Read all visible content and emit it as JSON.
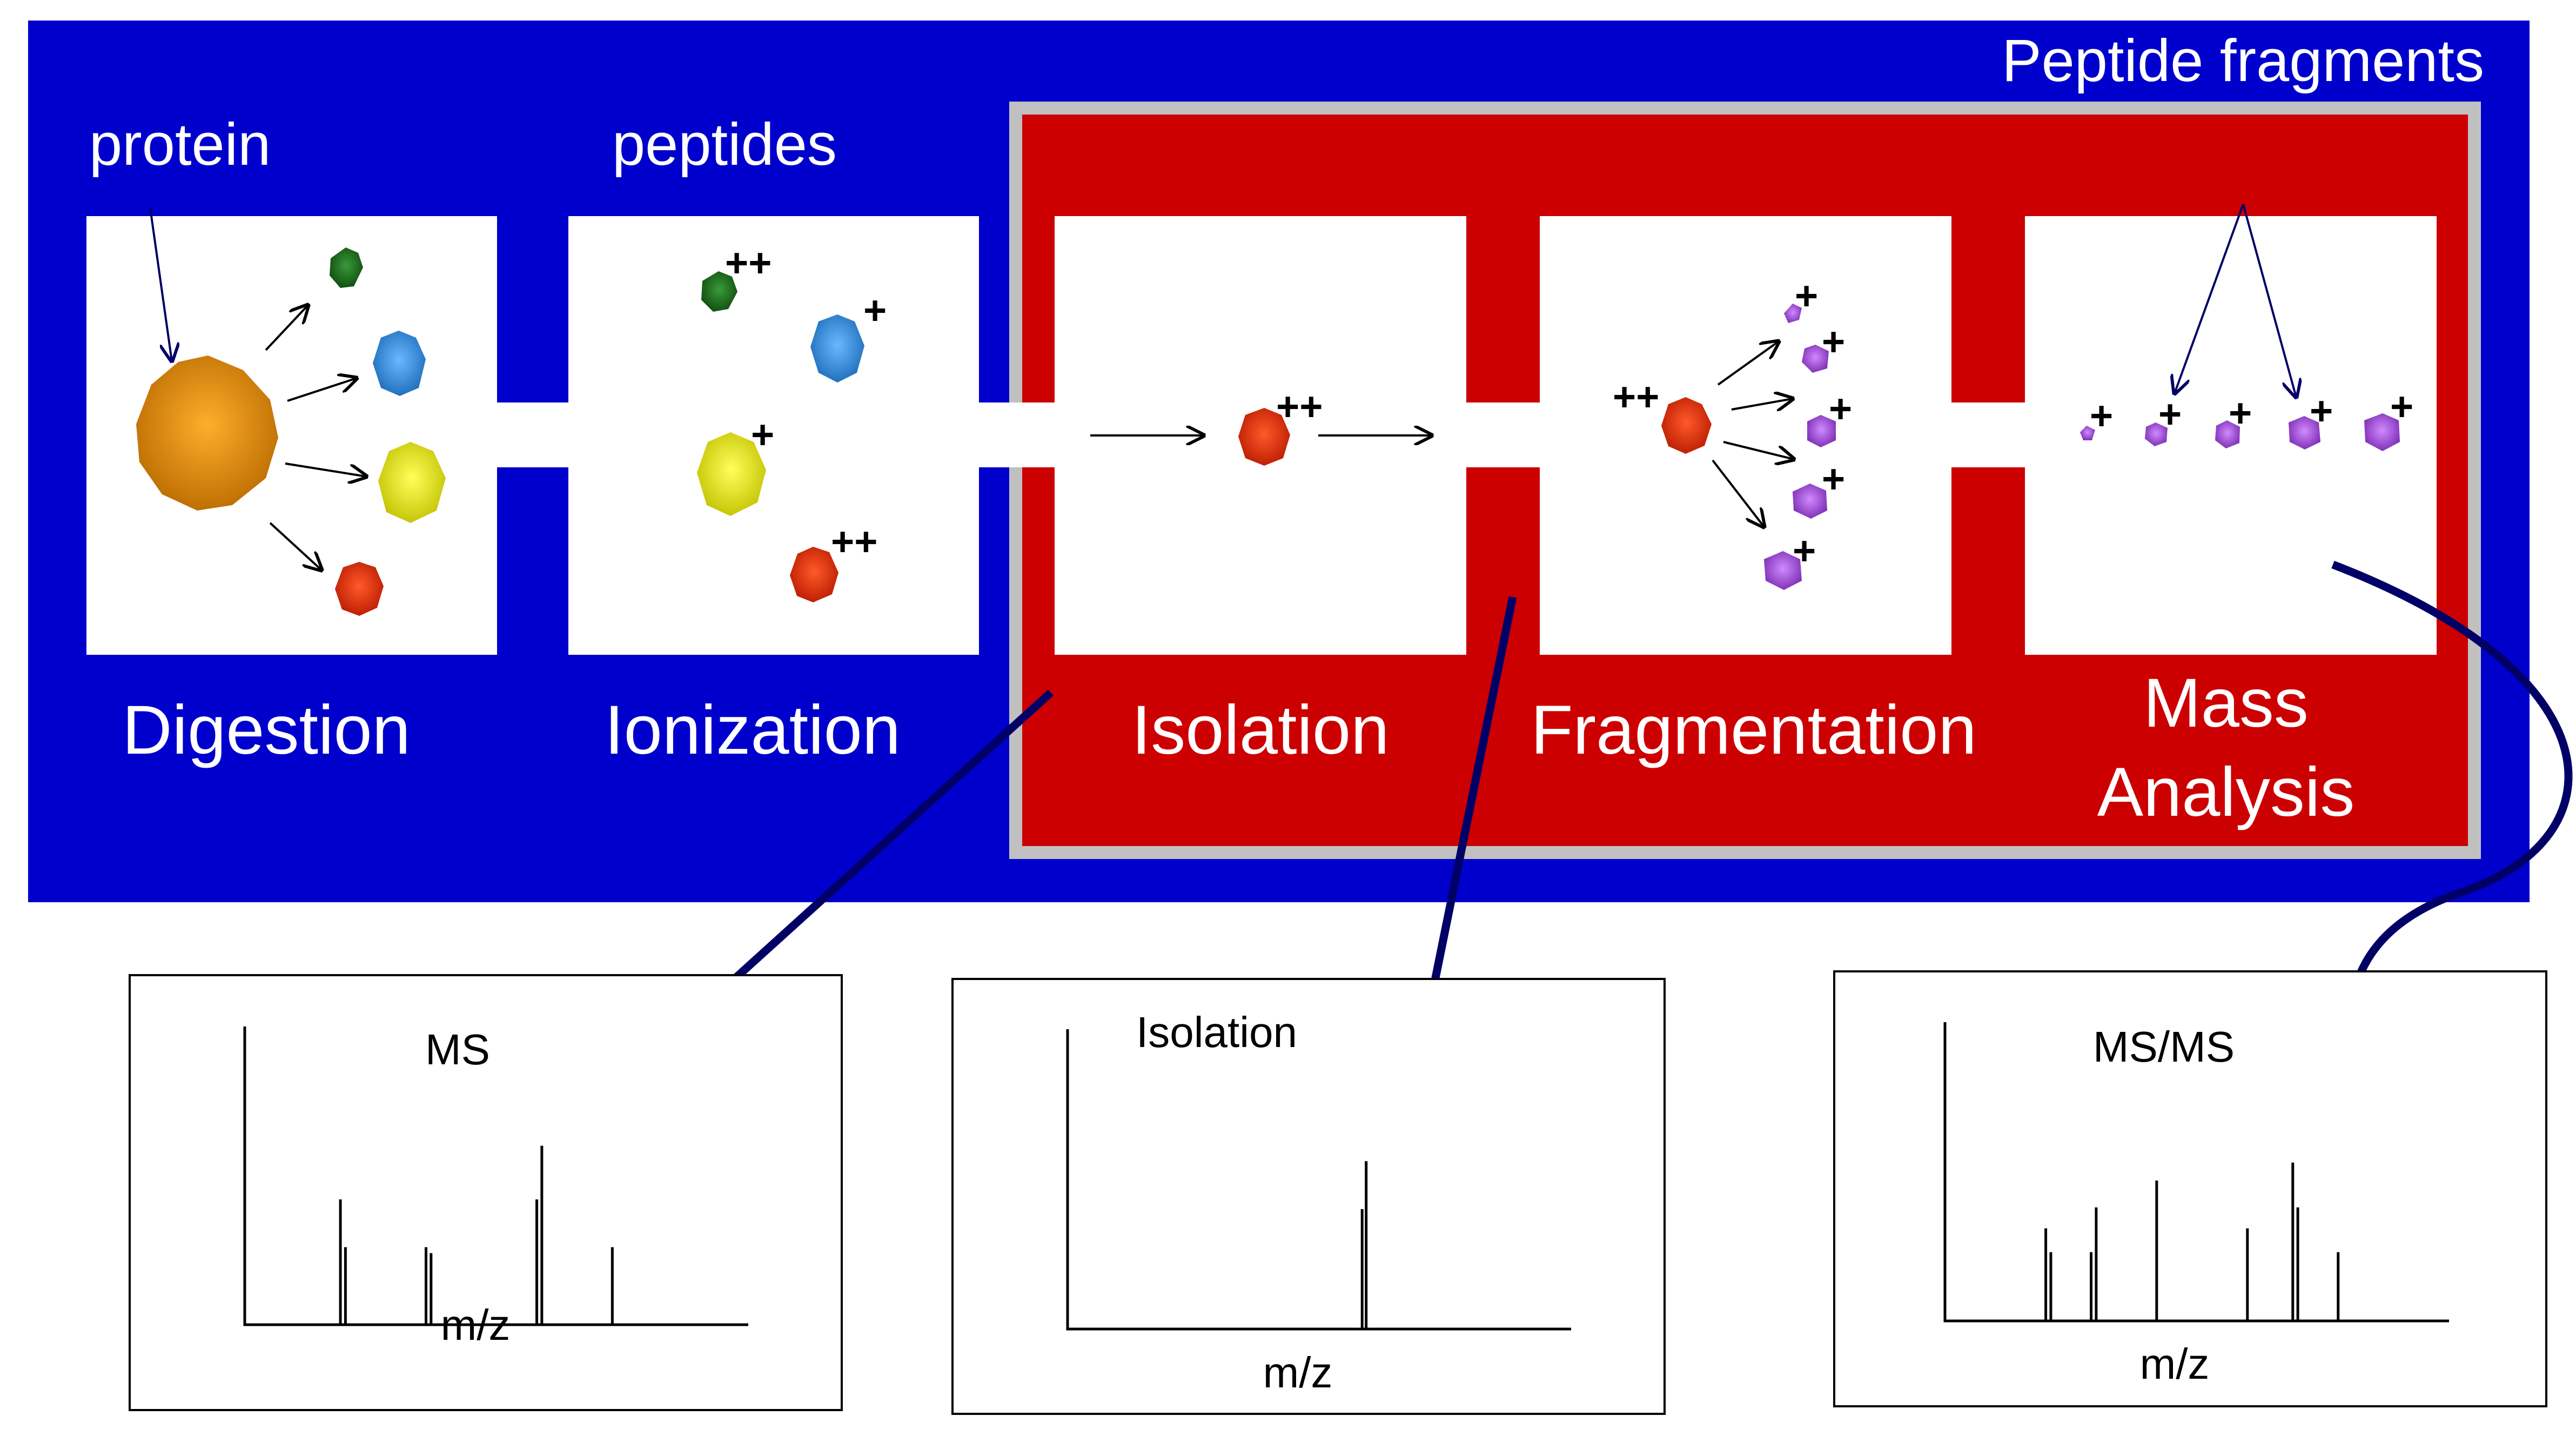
{
  "colors": {
    "background_blue": "#0000cc",
    "highlight_red": "#cc0000",
    "highlight_border": "#c0c0c0",
    "arrow_navy": "#000066",
    "protein": "#e08a00",
    "peptide_green": "#1a6a1a",
    "peptide_blue": "#2a8ae0",
    "peptide_yellow": "#e6e600",
    "peptide_red": "#e02a00",
    "fragment_purple": "#a04ad8"
  },
  "labels": {
    "peptide_fragments": "Peptide fragments",
    "protein": "protein",
    "peptides": "peptides"
  },
  "stages": [
    {
      "label": "Digestion"
    },
    {
      "label": "Ionization"
    },
    {
      "label": "Isolation"
    },
    {
      "label": "Fragmentation"
    },
    {
      "label_line1": "Mass",
      "label_line2": "Analysis"
    }
  ],
  "charges": {
    "single": "+",
    "double": "++"
  },
  "spectra": [
    {
      "title": "MS",
      "xlabel": "m/z"
    },
    {
      "title": "Isolation",
      "xlabel": "m/z"
    },
    {
      "title": "MS/MS",
      "xlabel": "m/z"
    }
  ],
  "chart_data": [
    {
      "type": "bar",
      "title": "MS",
      "xlabel": "m/z",
      "ylabel": "",
      "peaks": [
        {
          "x": 0.19,
          "y": 0.42
        },
        {
          "x": 0.2,
          "y": 0.26
        },
        {
          "x": 0.36,
          "y": 0.26
        },
        {
          "x": 0.37,
          "y": 0.24
        },
        {
          "x": 0.58,
          "y": 0.42
        },
        {
          "x": 0.59,
          "y": 0.6
        },
        {
          "x": 0.73,
          "y": 0.26
        }
      ]
    },
    {
      "type": "bar",
      "title": "Isolation",
      "xlabel": "m/z",
      "ylabel": "",
      "peaks": [
        {
          "x": 0.585,
          "y": 0.4
        },
        {
          "x": 0.593,
          "y": 0.56
        }
      ]
    },
    {
      "type": "bar",
      "title": "MS/MS",
      "xlabel": "m/z",
      "ylabel": "",
      "peaks": [
        {
          "x": 0.2,
          "y": 0.31
        },
        {
          "x": 0.21,
          "y": 0.23
        },
        {
          "x": 0.29,
          "y": 0.23
        },
        {
          "x": 0.3,
          "y": 0.38
        },
        {
          "x": 0.42,
          "y": 0.47
        },
        {
          "x": 0.6,
          "y": 0.31
        },
        {
          "x": 0.69,
          "y": 0.53
        },
        {
          "x": 0.7,
          "y": 0.38
        },
        {
          "x": 0.78,
          "y": 0.23
        }
      ]
    }
  ]
}
